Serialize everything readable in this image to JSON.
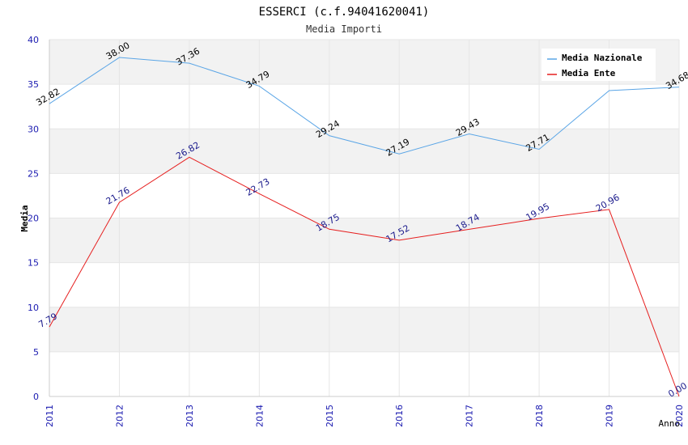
{
  "chart_data": {
    "type": "line",
    "title": "ESSERCI (c.f.94041620041)",
    "subtitle": "Media Importi",
    "xlabel": "Anno",
    "ylabel": "Media",
    "categories": [
      "2011",
      "2012",
      "2013",
      "2014",
      "2015",
      "2016",
      "2017",
      "2018",
      "2019",
      "2020"
    ],
    "ylim": [
      0,
      40
    ],
    "yticks": [
      "0",
      "5",
      "10",
      "15",
      "20",
      "25",
      "30",
      "35",
      "40"
    ],
    "grid": true,
    "legend_position": "top-right",
    "series": [
      {
        "name": "Media Nazionale",
        "color": "#5aa5e6",
        "label_color": "#000000",
        "values": [
          32.82,
          38.0,
          37.36,
          34.79,
          29.24,
          27.19,
          29.43,
          27.71,
          34.29,
          34.68
        ],
        "labels": [
          "32.82",
          "38.00",
          "37.36",
          "34.79",
          "29.24",
          "27.19",
          "29.43",
          "27.71",
          "",
          "34.68"
        ]
      },
      {
        "name": "Media Ente",
        "color": "#e61e1e",
        "label_color": "#1a1a8c",
        "values": [
          7.79,
          21.76,
          26.82,
          22.73,
          18.75,
          17.52,
          18.74,
          19.95,
          20.96,
          0.0
        ],
        "labels": [
          "7.79",
          "21.76",
          "26.82",
          "22.73",
          "18.75",
          "17.52",
          "18.74",
          "19.95",
          "20.96",
          "0.00"
        ]
      }
    ]
  }
}
